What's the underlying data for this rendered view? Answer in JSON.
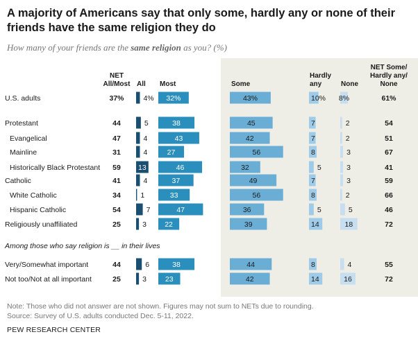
{
  "title": "A majority of Americans say that only some, hardly any or none of their friends have the same religion they do",
  "subtitle_pre": "How many of your friends are the ",
  "subtitle_bold": "same religion",
  "subtitle_post": " as you? (%)",
  "section_label": "Among those who say religion is __ in their lives",
  "note": "Note: Those who did not answer are not shown. Figures may not sum to NETs due to rounding.",
  "source": "Source: Survey of U.S. adults conducted Dec. 5-11, 2022.",
  "org": "PEW RESEARCH CENTER",
  "colors": {
    "all": "#1b4f72",
    "most": "#2a8fbd",
    "some": "#6aaed6",
    "hardly": "#9ecbe8",
    "none": "#c6def0",
    "shade": "#eeeee6"
  },
  "chart_data": {
    "type": "bar",
    "headers": {
      "net_all_most": [
        "NET",
        "All/Most"
      ],
      "all": [
        "All"
      ],
      "most": [
        "Most"
      ],
      "some": [
        "Some"
      ],
      "hardly": [
        "Hardly",
        "any"
      ],
      "none": [
        "None"
      ],
      "net_some": [
        "NET Some/",
        "Hardly any/",
        "None"
      ]
    },
    "rows": [
      {
        "label": "U.S. adults",
        "net_all_most": "37%",
        "all": 4,
        "most": 32,
        "some": 43,
        "hardly": 10,
        "none": 8,
        "net_some": "61%",
        "all_label": "4%",
        "most_label": "32%",
        "some_label": "43%",
        "hardly_label": "10%",
        "none_label": "8%"
      },
      {
        "label": "Protestant",
        "net_all_most": "44",
        "all": 5,
        "most": 38,
        "some": 45,
        "hardly": 7,
        "none": 2,
        "net_some": "54"
      },
      {
        "label": "Evangelical",
        "indent": true,
        "net_all_most": "47",
        "all": 4,
        "most": 43,
        "some": 42,
        "hardly": 7,
        "none": 2,
        "net_some": "51"
      },
      {
        "label": "Mainline",
        "indent": true,
        "net_all_most": "31",
        "all": 4,
        "most": 27,
        "some": 56,
        "hardly": 8,
        "none": 3,
        "net_some": "67"
      },
      {
        "label": "Historically Black Protestant",
        "indent": true,
        "net_all_most": "59",
        "all": 13,
        "most": 46,
        "some": 32,
        "hardly": 5,
        "none": 3,
        "net_some": "41"
      },
      {
        "label": "Catholic",
        "net_all_most": "41",
        "all": 4,
        "most": 37,
        "some": 49,
        "hardly": 7,
        "none": 3,
        "net_some": "59"
      },
      {
        "label": "White Catholic",
        "indent": true,
        "net_all_most": "34",
        "all": 1,
        "most": 33,
        "some": 56,
        "hardly": 8,
        "none": 2,
        "net_some": "66"
      },
      {
        "label": "Hispanic Catholic",
        "indent": true,
        "net_all_most": "54",
        "all": 7,
        "most": 47,
        "some": 36,
        "hardly": 5,
        "none": 5,
        "net_some": "46"
      },
      {
        "label": "Religiously unaffiliated",
        "net_all_most": "25",
        "all": 3,
        "most": 22,
        "some": 39,
        "hardly": 14,
        "none": 18,
        "net_some": "72"
      },
      {
        "label": "Very/Somewhat important",
        "net_all_most": "44",
        "all": 6,
        "most": 38,
        "some": 44,
        "hardly": 8,
        "none": 4,
        "net_some": "55"
      },
      {
        "label": "Not too/Not at all important",
        "net_all_most": "25",
        "all": 3,
        "most": 23,
        "some": 42,
        "hardly": 14,
        "none": 16,
        "net_some": "72"
      }
    ]
  }
}
